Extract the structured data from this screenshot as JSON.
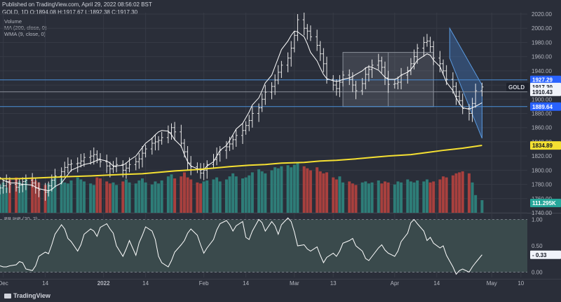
{
  "header": {
    "published": "Published on TradingView.com, April 29, 2022 08:56:02 BST",
    "symbol_line": "GOLD, 1D  O:1894.08 H:1917.67 L:1892.38 C:1917.30",
    "legend": [
      "Volume",
      "MA (200, close, 0)",
      "WMA (9, close, 0)"
    ],
    "osc_legend": "BB %B (20, 2)"
  },
  "brand": {
    "name": "TradingView",
    "icon": "tradingview-logo-icon"
  },
  "colors": {
    "background": "#2a2e39",
    "grid": "#363a45",
    "candle": "#e8e8e8",
    "wma": "#ffffff",
    "ma200": "#f5e032",
    "vol_up": "#2e7d78",
    "vol_down": "#a8403e",
    "hline": "#4a90d9",
    "channel_fill": "#3d6fb0",
    "range_box": "#8a8f99",
    "osc_band": "#3a4a4c",
    "osc_line": "#ffffff"
  },
  "price_labels": [
    {
      "text": "GOLD",
      "style": "dark"
    },
    {
      "text": "1927.29",
      "style": "blue",
      "price": 1927.29
    },
    {
      "text": "1917.30",
      "style": "white",
      "price": 1917.3
    },
    {
      "text": "1910.43",
      "style": "white",
      "price": 1910.43
    },
    {
      "text": "1889.64",
      "style": "blue",
      "price": 1889.64
    },
    {
      "text": "1834.89",
      "style": "yellow",
      "price": 1834.89
    },
    {
      "text": "111.295K",
      "style": "teal"
    },
    {
      "text": "- 0.33",
      "style": "white",
      "value": 0.33
    }
  ],
  "chart_data": [
    {
      "type": "candlestick",
      "title": "GOLD, 1D",
      "y_ticks": [
        2020,
        2000,
        1980,
        1960,
        1940,
        1920,
        1900,
        1880,
        1860,
        1840,
        1820,
        1800,
        1780,
        1760,
        1740
      ],
      "ylim": [
        1740,
        2022
      ],
      "x_ticks": [
        "Dec",
        "14",
        "2022",
        "14",
        "Feb",
        "14",
        "Mar",
        "13",
        "Apr",
        "14",
        "May",
        "10"
      ],
      "x_range": [
        "2021-11-30",
        "2022-05-12"
      ],
      "close": [
        1775,
        1778,
        1784,
        1780,
        1776,
        1779,
        1784,
        1786,
        1782,
        1775,
        1772,
        1769,
        1778,
        1786,
        1792,
        1798,
        1804,
        1808,
        1809,
        1810,
        1813,
        1818,
        1820,
        1822,
        1816,
        1812,
        1806,
        1802,
        1805,
        1808,
        1800,
        1803,
        1808,
        1812,
        1816,
        1824,
        1830,
        1838,
        1840,
        1842,
        1846,
        1853,
        1860,
        1854,
        1838,
        1826,
        1810,
        1805,
        1802,
        1796,
        1800,
        1808,
        1815,
        1822,
        1828,
        1833,
        1837,
        1843,
        1849,
        1856,
        1863,
        1870,
        1880,
        1888,
        1900,
        1910,
        1918,
        1927,
        1938,
        1948,
        1958,
        1972,
        1990,
        2012,
        2000,
        1996,
        1988,
        1976,
        1964,
        1950,
        1928,
        1920,
        1915,
        1924,
        1934,
        1928,
        1920,
        1912,
        1922,
        1935,
        1942,
        1948,
        1954,
        1945,
        1930,
        1921,
        1922,
        1924,
        1934,
        1940,
        1950,
        1960,
        1972,
        1980,
        1982,
        1974,
        1958,
        1950,
        1940,
        1928,
        1918,
        1904,
        1898,
        1887,
        1880,
        1894,
        1912,
        1917.3
      ],
      "wma9": [
        1790,
        1786,
        1784,
        1782,
        1782,
        1781,
        1780,
        1780,
        1779,
        1776,
        1774,
        1772,
        1771,
        1773,
        1777,
        1782,
        1788,
        1794,
        1800,
        1804,
        1806,
        1808,
        1810,
        1812,
        1814,
        1815,
        1813,
        1810,
        1806,
        1806,
        1807,
        1810,
        1814,
        1820,
        1826,
        1832,
        1838,
        1845,
        1850,
        1854,
        1856,
        1855,
        1850,
        1843,
        1834,
        1822,
        1812,
        1806,
        1802,
        1800,
        1801,
        1806,
        1812,
        1820,
        1828,
        1835,
        1842,
        1850,
        1858,
        1866,
        1874,
        1882,
        1892,
        1902,
        1912,
        1923,
        1934,
        1946,
        1958,
        1970,
        1982,
        1990,
        1996,
        1995,
        1988,
        1978,
        1966,
        1954,
        1944,
        1935,
        1929,
        1926,
        1925,
        1926,
        1928,
        1930,
        1932,
        1935,
        1940,
        1944,
        1946,
        1945,
        1941,
        1936,
        1931,
        1928,
        1928,
        1930,
        1934,
        1938,
        1942,
        1948,
        1955,
        1961,
        1964,
        1962,
        1955,
        1946,
        1935,
        1924,
        1912,
        1902,
        1894,
        1888,
        1886,
        1888,
        1890,
        1895
      ],
      "ma200": [
        1788,
        1788,
        1789,
        1790,
        1791,
        1792,
        1793,
        1794,
        1795,
        1797,
        1799,
        1801,
        1803,
        1805,
        1807,
        1808,
        1810,
        1811,
        1813,
        1814,
        1816,
        1818,
        1820,
        1822,
        1825,
        1828,
        1831,
        1835
      ],
      "volume": [
        0.55,
        0.6,
        0.5,
        0.65,
        0.7,
        0.62,
        0.58,
        0.66,
        0.7,
        0.64,
        0.6,
        0.55,
        0.58,
        0.66,
        0.72,
        0.68,
        0.6,
        0.58,
        0.64,
        0.7,
        0.66,
        0.62,
        0.58,
        0.55,
        0.7,
        0.68,
        0.62,
        0.58,
        0.6,
        0.55,
        0.62,
        0.66,
        0.6,
        0.58,
        0.64,
        0.68,
        0.6,
        0.56,
        0.62,
        0.58,
        0.64,
        0.72,
        0.76,
        0.68,
        0.72,
        0.8,
        0.7,
        0.66,
        0.6,
        0.58,
        0.62,
        0.64,
        0.66,
        0.7,
        0.62,
        0.66,
        0.72,
        0.78,
        0.72,
        0.68,
        0.7,
        0.74,
        0.8,
        0.86,
        0.82,
        0.78,
        0.84,
        0.9,
        0.88,
        0.92,
        0.94,
        0.9,
        0.95,
        1.0,
        0.92,
        0.88,
        0.84,
        0.9,
        0.82,
        0.78,
        0.8,
        0.7,
        0.66,
        0.72,
        0.6,
        0.62,
        0.58,
        0.55,
        0.6,
        0.62,
        0.58,
        0.6,
        0.64,
        0.58,
        0.62,
        0.6,
        0.56,
        0.62,
        0.6,
        0.66,
        0.62,
        0.6,
        0.64,
        0.62,
        0.66,
        0.6,
        0.62,
        0.66,
        0.72,
        0.7,
        0.74,
        0.78,
        0.8,
        0.82,
        0.78,
        0.6,
        0.35,
        0.25
      ],
      "annotations": {
        "hlines": [
          1927.29,
          1910.43,
          1889.64
        ],
        "range_box": {
          "x": [
            "2022-03-16",
            "2022-04-13"
          ],
          "y": [
            1889.64,
            1966
          ]
        },
        "descending_channel": {
          "x": [
            "2022-04-18",
            "2022-04-28"
          ],
          "upper": [
            2000,
            1920
          ],
          "lower": [
            1958,
            1845
          ]
        }
      }
    },
    {
      "type": "line",
      "title": "BB %B (20, 2)",
      "y_ticks": [
        1.0,
        0.5,
        0.0
      ],
      "ylim": [
        -0.1,
        1.1
      ],
      "x_range": [
        "2021-11-30",
        "2022-05-12"
      ],
      "values": [
        0.12,
        0.1,
        0.1,
        0.12,
        0.14,
        0.2,
        0.18,
        0.06,
        0.03,
        0.12,
        0.3,
        0.38,
        0.35,
        0.52,
        0.72,
        0.9,
        0.82,
        0.64,
        0.58,
        0.4,
        0.52,
        0.72,
        0.82,
        0.78,
        0.68,
        0.85,
        0.92,
        0.82,
        0.74,
        0.5,
        0.3,
        0.44,
        0.6,
        0.32,
        0.56,
        0.7,
        0.86,
        0.78,
        0.62,
        0.3,
        0.18,
        0.1,
        0.22,
        0.38,
        0.52,
        0.6,
        0.74,
        0.82,
        0.7,
        0.52,
        0.36,
        0.46,
        0.62,
        0.8,
        0.92,
        0.98,
        0.9,
        0.78,
        0.88,
        0.96,
        0.66,
        0.62,
        0.78,
        1.0,
        0.94,
        0.78,
        0.96,
        0.88,
        0.72,
        0.9,
        1.03,
        0.96,
        0.76,
        0.5,
        0.52,
        0.44,
        0.4,
        0.48,
        0.32,
        0.18,
        0.28,
        0.36,
        0.3,
        0.4,
        0.55,
        0.6,
        0.64,
        0.5,
        0.4,
        0.26,
        0.22,
        0.3,
        0.46,
        0.52,
        0.42,
        0.36,
        0.3,
        0.4,
        0.58,
        0.74,
        0.94,
        1.0,
        0.92,
        0.78,
        0.6,
        0.66,
        0.55,
        0.46,
        0.5,
        0.32,
        0.1,
        -0.04,
        0.03,
        0.06,
        0.0,
        0.1,
        0.18,
        0.33
      ]
    }
  ]
}
